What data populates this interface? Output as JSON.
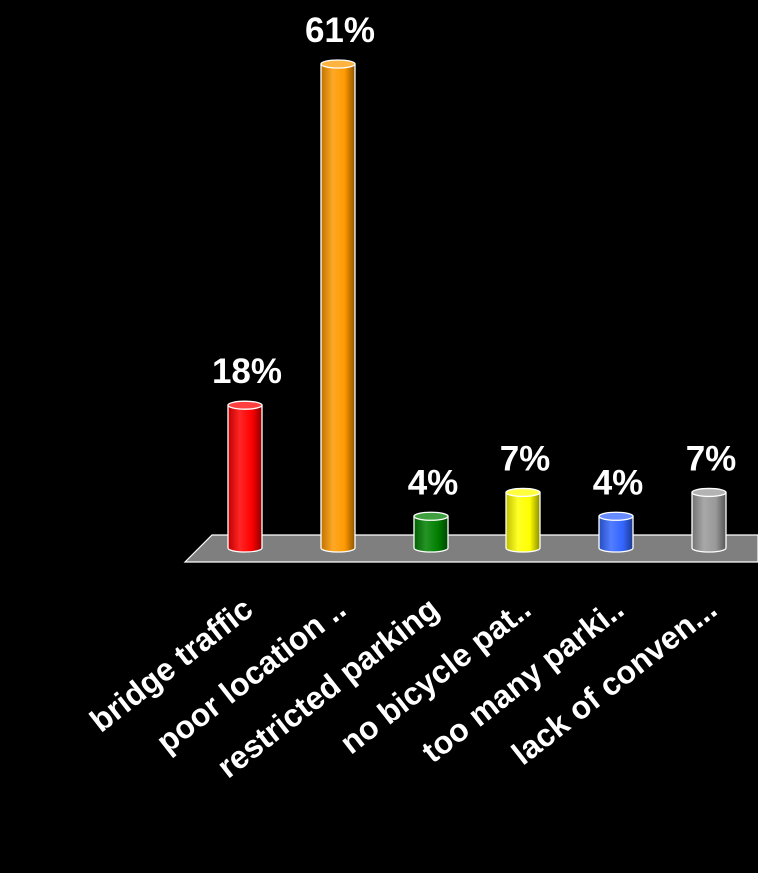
{
  "chart_data": {
    "type": "bar",
    "style": "3d-cylinder",
    "categories": [
      "bridge traffic",
      "poor location ..",
      "restricted parking",
      "no bicycle pat..",
      "too many parki..",
      "lack of conven..."
    ],
    "values": [
      18,
      61,
      4,
      7,
      4,
      7
    ],
    "value_labels": [
      "18%",
      "61%",
      "4%",
      "7%",
      "4%",
      "7%"
    ],
    "colors": [
      "#ff0000",
      "#ff9900",
      "#008000",
      "#ffff00",
      "#3366ff",
      "#999999"
    ],
    "ylim": [
      0,
      61
    ],
    "unit": "%",
    "background": "#000000",
    "floor_color": "#7f7f7f",
    "grid": false,
    "legend": "none",
    "title": "",
    "xlabel": "",
    "ylabel": ""
  }
}
